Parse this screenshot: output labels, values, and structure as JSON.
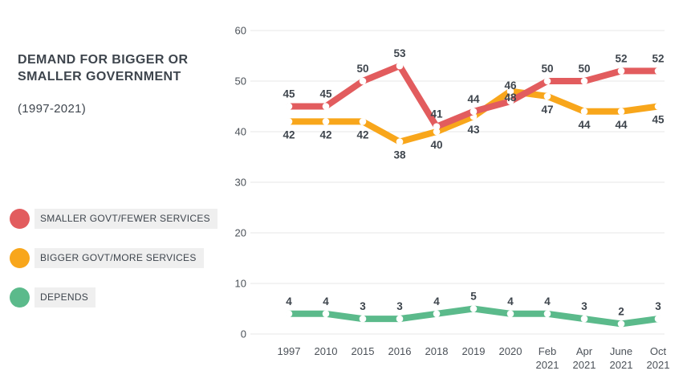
{
  "header": {
    "title": "DEMAND FOR BIGGER OR SMALLER GOVERNMENT",
    "subtitle": "(1997-2021)"
  },
  "legend": {
    "position": "left",
    "items": [
      {
        "label": "SMALLER GOVT/FEWER SERVICES",
        "color": "#e25c5e"
      },
      {
        "label": "BIGGER GOVT/MORE SERVICES",
        "color": "#f8a61b"
      },
      {
        "label": "DEPENDS",
        "color": "#5bba8b"
      }
    ]
  },
  "chart_data": {
    "type": "line",
    "title": "DEMAND FOR BIGGER OR SMALLER GOVERNMENT (1997-2021)",
    "categories": [
      "1997",
      "2010",
      "2015",
      "2016",
      "2018",
      "2019",
      "2020",
      "Feb 2021",
      "Apr 2021",
      "June 2021",
      "Oct 2021"
    ],
    "series": [
      {
        "name": "SMALLER GOVT/FEWER SERVICES",
        "color": "#e25c5e",
        "label_position": "above",
        "values": [
          45,
          45,
          50,
          53,
          41,
          44,
          46,
          50,
          50,
          52,
          52
        ]
      },
      {
        "name": "BIGGER GOVT/MORE SERVICES",
        "color": "#f8a61b",
        "label_position": "below",
        "values": [
          42,
          42,
          42,
          38,
          40,
          43,
          48,
          47,
          44,
          44,
          45
        ]
      },
      {
        "name": "DEPENDS",
        "color": "#5bba8b",
        "label_position": "above",
        "values": [
          4,
          4,
          3,
          3,
          4,
          5,
          4,
          4,
          3,
          2,
          3
        ]
      }
    ],
    "y_ticks": [
      0,
      10,
      20,
      30,
      40,
      50,
      60
    ],
    "ylim": [
      0,
      60
    ],
    "xlabel": "",
    "ylabel": "",
    "grid": "horizontal",
    "data_labels": true,
    "legend_position": "left"
  },
  "colors": {
    "background": "#ffffff",
    "text_dark": "#3e454d",
    "axis_text": "#4b5158",
    "grid": "#e7e7e7",
    "legend_bg": "#efefef",
    "dot_fill": "#ffffff"
  }
}
